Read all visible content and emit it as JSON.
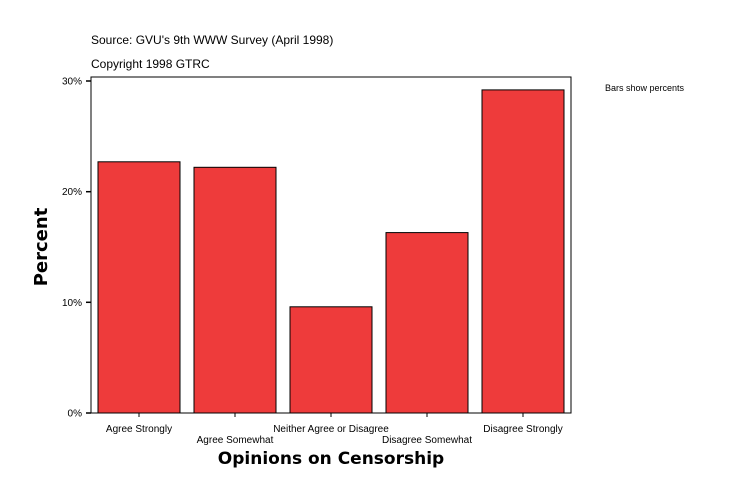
{
  "header": {
    "source": "Source: GVU's 9th WWW Survey (April 1998)",
    "copyright": "Copyright 1998 GTRC",
    "note": "Bars show percents"
  },
  "chart_data": {
    "type": "bar",
    "title": "",
    "xlabel": "Opinions on Censorship",
    "ylabel": "Percent",
    "categories": [
      "Agree Strongly",
      "Agree Somewhat",
      "Neither Agree or Disagree",
      "Disagree Somewhat",
      "Disagree Strongly"
    ],
    "values": [
      22.7,
      22.2,
      9.6,
      16.3,
      29.2
    ],
    "ylim": [
      0,
      30
    ],
    "yticks": [
      0,
      10,
      20,
      30
    ],
    "ytick_labels": [
      "0%",
      "10%",
      "20%",
      "30%"
    ],
    "grid": false,
    "legend": "none",
    "bar_color": "#ee3b3b",
    "bar_edge_color": "#000000"
  }
}
